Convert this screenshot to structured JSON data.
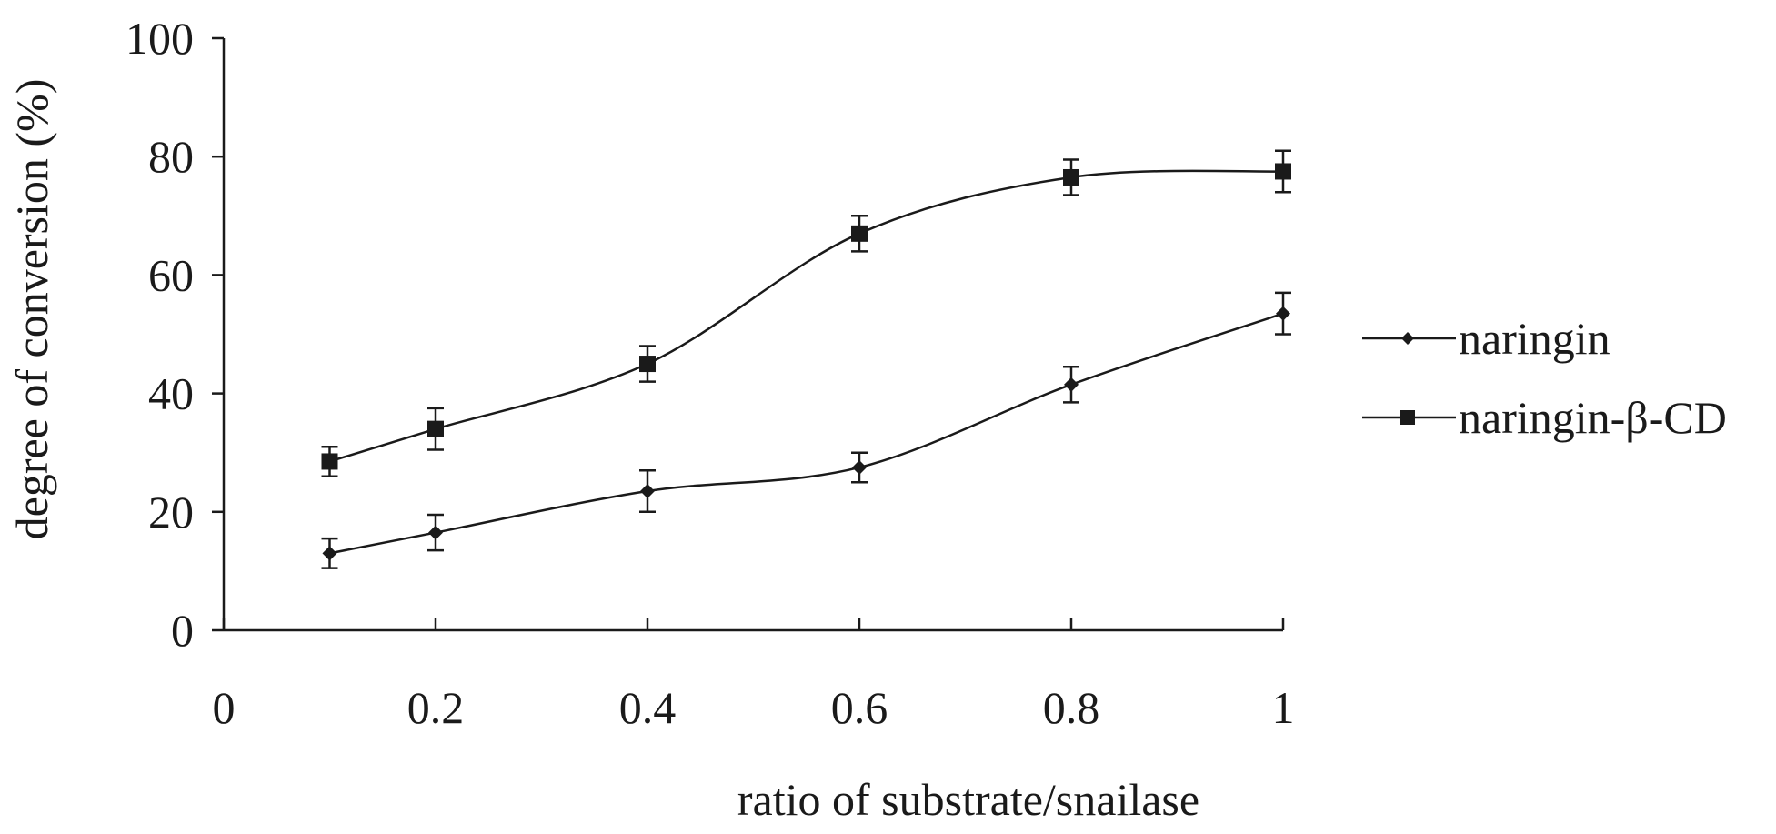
{
  "chart_data": {
    "type": "line",
    "title": "",
    "xlabel": "ratio of substrate/snailase",
    "ylabel": "degree of conversion (%)",
    "xlim": [
      0,
      1
    ],
    "ylim": [
      0,
      100
    ],
    "x_ticks": [
      0,
      0.2,
      0.4,
      0.6,
      0.8,
      1
    ],
    "x_tick_labels": [
      "0",
      "0.2",
      "0.4",
      "0.6",
      "0.8",
      "1"
    ],
    "y_ticks": [
      0,
      20,
      40,
      60,
      80,
      100
    ],
    "y_tick_labels": [
      "0",
      "20",
      "40",
      "60",
      "80",
      "100"
    ],
    "grid": false,
    "legend_position": "right",
    "x": [
      0.1,
      0.2,
      0.4,
      0.6,
      0.8,
      1.0
    ],
    "series": [
      {
        "name": "naringin",
        "marker": "diamond",
        "color": "#1a1a1a",
        "values": [
          13,
          16.5,
          23.5,
          27.5,
          41.5,
          53.5
        ],
        "errors": [
          2.5,
          3,
          3.5,
          2.5,
          3,
          3.5
        ]
      },
      {
        "name": "naringin-β-CD",
        "marker": "square",
        "color": "#1a1a1a",
        "values": [
          28.5,
          34,
          45,
          67,
          76.5,
          77.5
        ],
        "errors": [
          2.5,
          3.5,
          3,
          3,
          3,
          3.5
        ]
      }
    ]
  }
}
